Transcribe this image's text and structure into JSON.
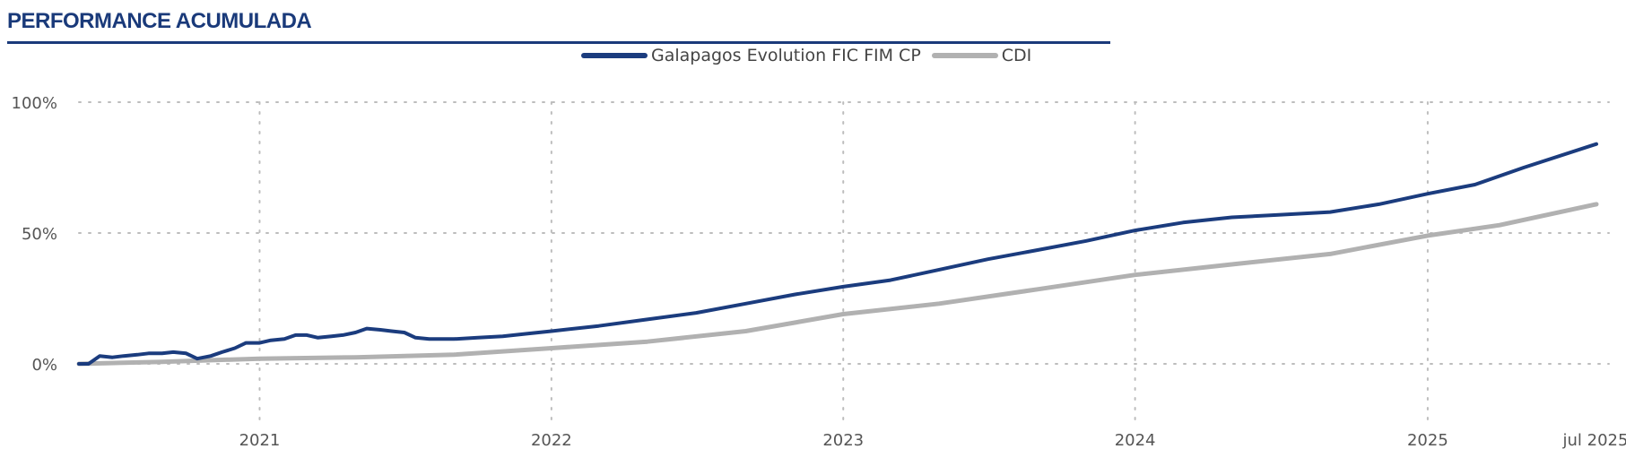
{
  "header": {
    "title": "PERFORMANCE ACUMULADA"
  },
  "legend": {
    "items": [
      {
        "label": "Galapagos Evolution FIC FIM CP",
        "color": "#1b3c7e"
      },
      {
        "label": "CDI",
        "color": "#b1b1b1"
      }
    ]
  },
  "chart_data": {
    "type": "line",
    "title": "PERFORMANCE ACUMULADA",
    "xlabel": "",
    "ylabel": "",
    "x_range": [
      "2020-05-20",
      "2025-07-31"
    ],
    "ylim": [
      -20,
      100
    ],
    "y_ticks": [
      0,
      50,
      100
    ],
    "y_tick_labels": [
      "0%",
      "50%",
      "100%"
    ],
    "x_ticks": [
      "2021-01-01",
      "2022-01-01",
      "2023-01-01",
      "2024-01-01",
      "2025-01-01",
      "2025-07-31"
    ],
    "x_tick_labels": [
      "2021",
      "2022",
      "2023",
      "2024",
      "2025",
      "jul 2025"
    ],
    "grid": true,
    "legend_position": "top",
    "series": [
      {
        "name": "Galapagos Evolution FIC FIM CP",
        "color": "#1b3c7e",
        "points": [
          [
            "2020-05-20",
            0
          ],
          [
            "2020-06-01",
            0
          ],
          [
            "2020-06-15",
            3
          ],
          [
            "2020-07-01",
            2.5
          ],
          [
            "2020-07-15",
            3
          ],
          [
            "2020-08-01",
            3.5
          ],
          [
            "2020-08-15",
            4
          ],
          [
            "2020-09-01",
            4
          ],
          [
            "2020-09-15",
            4.5
          ],
          [
            "2020-10-01",
            4
          ],
          [
            "2020-10-15",
            2
          ],
          [
            "2020-11-01",
            3
          ],
          [
            "2020-11-15",
            4.5
          ],
          [
            "2020-12-01",
            6
          ],
          [
            "2020-12-15",
            8
          ],
          [
            "2021-01-01",
            8
          ],
          [
            "2021-01-15",
            9
          ],
          [
            "2021-02-01",
            9.5
          ],
          [
            "2021-02-15",
            11
          ],
          [
            "2021-03-01",
            11
          ],
          [
            "2021-03-15",
            10
          ],
          [
            "2021-04-01",
            10.5
          ],
          [
            "2021-04-15",
            11
          ],
          [
            "2021-05-01",
            12
          ],
          [
            "2021-05-15",
            13.5
          ],
          [
            "2021-06-01",
            13
          ],
          [
            "2021-06-15",
            12.5
          ],
          [
            "2021-07-01",
            12
          ],
          [
            "2021-07-15",
            10
          ],
          [
            "2021-08-01",
            9.5
          ],
          [
            "2021-09-01",
            9.5
          ],
          [
            "2021-10-01",
            10
          ],
          [
            "2021-11-01",
            10.5
          ],
          [
            "2021-12-01",
            11.5
          ],
          [
            "2022-01-01",
            12.5
          ],
          [
            "2022-03-01",
            14.5
          ],
          [
            "2022-05-01",
            17
          ],
          [
            "2022-07-01",
            19.5
          ],
          [
            "2022-09-01",
            23
          ],
          [
            "2022-11-01",
            26.5
          ],
          [
            "2023-01-01",
            29.5
          ],
          [
            "2023-03-01",
            32
          ],
          [
            "2023-05-01",
            36
          ],
          [
            "2023-07-01",
            40
          ],
          [
            "2023-09-01",
            43.5
          ],
          [
            "2023-11-01",
            47
          ],
          [
            "2024-01-01",
            51
          ],
          [
            "2024-03-01",
            54
          ],
          [
            "2024-05-01",
            56
          ],
          [
            "2024-07-01",
            57
          ],
          [
            "2024-09-01",
            58
          ],
          [
            "2024-11-01",
            61
          ],
          [
            "2025-01-01",
            65
          ],
          [
            "2025-03-01",
            68.5
          ],
          [
            "2025-05-01",
            75
          ],
          [
            "2025-07-31",
            84
          ]
        ]
      },
      {
        "name": "CDI",
        "color": "#b1b1b1",
        "points": [
          [
            "2020-05-20",
            0
          ],
          [
            "2020-09-01",
            0.8
          ],
          [
            "2021-01-01",
            2
          ],
          [
            "2021-05-01",
            2.5
          ],
          [
            "2021-09-01",
            3.5
          ],
          [
            "2022-01-01",
            6
          ],
          [
            "2022-05-01",
            8.5
          ],
          [
            "2022-09-01",
            12.5
          ],
          [
            "2023-01-01",
            19
          ],
          [
            "2023-05-01",
            23
          ],
          [
            "2023-09-01",
            28.5
          ],
          [
            "2024-01-01",
            34
          ],
          [
            "2024-05-01",
            38
          ],
          [
            "2024-09-01",
            42
          ],
          [
            "2025-01-01",
            49
          ],
          [
            "2025-04-01",
            53
          ],
          [
            "2025-07-31",
            61
          ]
        ]
      }
    ]
  }
}
